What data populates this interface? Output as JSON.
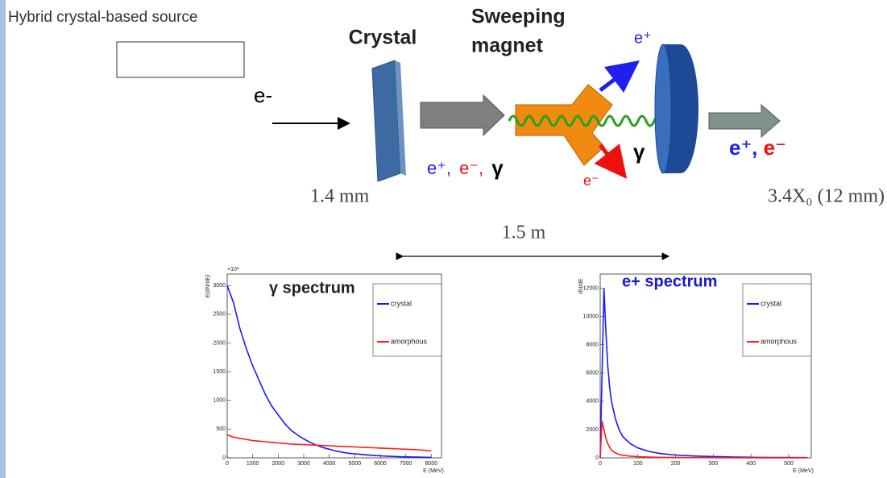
{
  "header": {
    "title": "Hybrid crystal-based source"
  },
  "diagram": {
    "input_label": "e-",
    "crystal_label": "Crystal",
    "magnet_label": [
      "Sweeping",
      "magnet"
    ],
    "mixed_label": [
      "e⁺,",
      "e⁻,",
      "γ"
    ],
    "positron_label": "e⁺",
    "gamma_label": "γ",
    "electron_label": "e⁻",
    "output_label": [
      "e⁺,",
      "e⁻"
    ],
    "crystal_thickness": "1.4 mm",
    "target_thickness": "3.4X₀ (12 mm)",
    "distance": "1.5 m"
  },
  "plots": [
    {
      "title": "γ spectrum",
      "title_color": "#222222",
      "ylabel": "E(dN/dE)",
      "multiplier": "×10³",
      "xlabel": "E (MeV)",
      "xlim": [
        0,
        8400
      ],
      "ylim": [
        0,
        3200
      ],
      "xticks": [
        0,
        1000,
        2000,
        3000,
        4000,
        5000,
        6000,
        7000,
        8000
      ],
      "yticks": [
        0,
        500,
        1000,
        1500,
        2000,
        2500,
        3000
      ],
      "x": [
        0,
        250,
        500,
        750,
        1000,
        1250,
        1500,
        1750,
        2000,
        2250,
        2500,
        2750,
        3000,
        3250,
        3500,
        3750,
        4000,
        4250,
        4500,
        4750,
        5000,
        5250,
        5500,
        5750,
        6000,
        6250,
        6500,
        6750,
        7000,
        7250,
        7500,
        7750,
        8000
      ],
      "series": [
        {
          "name": "crystal",
          "color": "#1a1aff",
          "values": [
            3000,
            2700,
            2250,
            1900,
            1600,
            1350,
            1100,
            900,
            750,
            600,
            480,
            400,
            330,
            270,
            220,
            180,
            150,
            120,
            100,
            80,
            70,
            60,
            50,
            40,
            35,
            30,
            25,
            20,
            18,
            15,
            12,
            10,
            8
          ]
        },
        {
          "name": "amorphous",
          "color": "#ff1a1a",
          "values": [
            400,
            360,
            340,
            320,
            300,
            290,
            280,
            270,
            260,
            250,
            240,
            235,
            230,
            225,
            220,
            215,
            210,
            205,
            200,
            195,
            190,
            185,
            180,
            175,
            170,
            165,
            160,
            155,
            150,
            145,
            140,
            130,
            120
          ]
        }
      ]
    },
    {
      "title": "e+ spectrum",
      "title_color": "#1a1acc",
      "ylabel": "dN/dE",
      "xlabel": "E (MeV)",
      "xlim": [
        0,
        560
      ],
      "ylim": [
        0,
        13000
      ],
      "xticks": [
        0,
        100,
        200,
        300,
        400,
        500
      ],
      "yticks": [
        0,
        2000,
        4000,
        6000,
        8000,
        10000,
        12000
      ],
      "x": [
        0,
        5,
        10,
        15,
        20,
        25,
        30,
        40,
        50,
        60,
        80,
        100,
        130,
        160,
        200,
        250,
        300,
        350,
        400,
        450,
        500,
        550
      ],
      "series": [
        {
          "name": "crystal",
          "color": "#1a1aff",
          "values": [
            0,
            6000,
            12000,
            9000,
            6500,
            5000,
            4000,
            2800,
            2000,
            1500,
            1000,
            700,
            450,
            300,
            200,
            130,
            90,
            60,
            40,
            30,
            20,
            15
          ]
        },
        {
          "name": "amorphous",
          "color": "#ff1a1a",
          "values": [
            0,
            2600,
            2000,
            1400,
            1000,
            750,
            550,
            350,
            250,
            180,
            120,
            80,
            50,
            35,
            25,
            15,
            10,
            8,
            5,
            4,
            3,
            2
          ]
        }
      ]
    }
  ]
}
